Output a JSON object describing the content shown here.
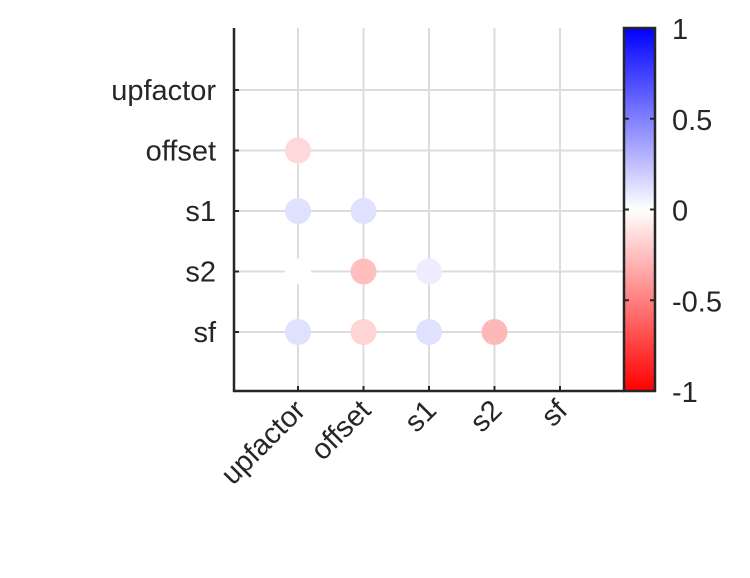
{
  "chart_data": {
    "type": "scatter",
    "subtype": "correlation-matrix-lower-triangle",
    "title": "",
    "xlabel": "",
    "ylabel": "",
    "variables": [
      "upfactor",
      "offset",
      "s1",
      "s2",
      "sf"
    ],
    "x_tick_labels": [
      "upfactor",
      "offset",
      "s1",
      "s2",
      "sf"
    ],
    "y_tick_labels": [
      "upfactor",
      "offset",
      "s1",
      "s2",
      "sf"
    ],
    "grid": true,
    "points": [
      {
        "row": "offset",
        "col": "upfactor",
        "value": -0.15
      },
      {
        "row": "s1",
        "col": "upfactor",
        "value": 0.12
      },
      {
        "row": "s1",
        "col": "offset",
        "value": 0.12
      },
      {
        "row": "s2",
        "col": "upfactor",
        "value": 0.0
      },
      {
        "row": "s2",
        "col": "offset",
        "value": -0.25
      },
      {
        "row": "s2",
        "col": "s1",
        "value": 0.07
      },
      {
        "row": "sf",
        "col": "upfactor",
        "value": 0.12
      },
      {
        "row": "sf",
        "col": "offset",
        "value": -0.17
      },
      {
        "row": "sf",
        "col": "s1",
        "value": 0.12
      },
      {
        "row": "sf",
        "col": "s2",
        "value": -0.28
      }
    ],
    "colorbar": {
      "range": [
        -1,
        1
      ],
      "ticks": [
        1,
        0.5,
        0,
        -0.5,
        -1
      ],
      "tick_labels": [
        "1",
        "0.5",
        "0",
        "-0.5",
        "-1"
      ],
      "colors": {
        "low": "#ff0000",
        "mid": "#ffffff",
        "high": "#0000ff"
      }
    },
    "colors": {
      "axis": "#262626",
      "grid": "#dcdcdc"
    }
  }
}
